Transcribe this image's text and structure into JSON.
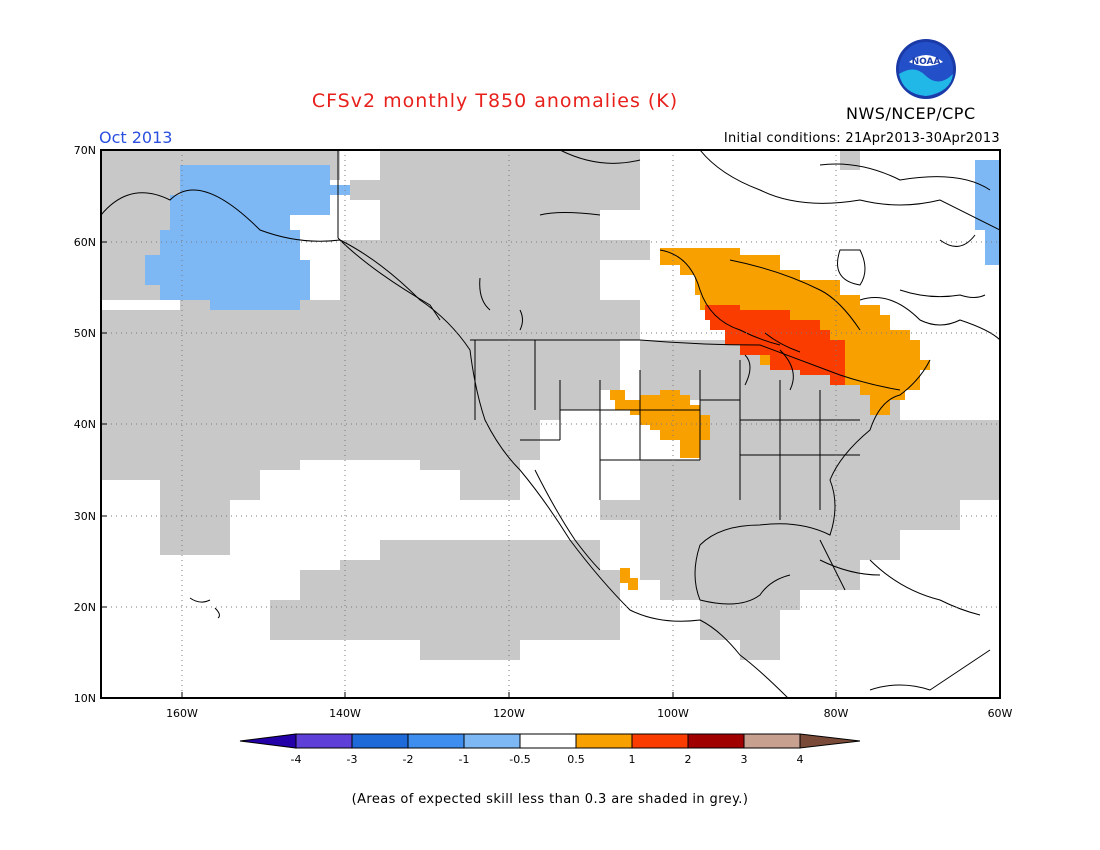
{
  "title": "CFSv2 monthly T850 anomalies (K)",
  "valid_month": "Oct 2013",
  "initial_conditions": "Initial conditions: 21Apr2013-30Apr2013",
  "agency": "NWS/NCEP/CPC",
  "logo_text": "NOAA",
  "footnote": "(Areas of expected skill less than 0.3 are shaded in grey.)",
  "map": {
    "lon_range": [
      -170,
      -60
    ],
    "lat_range": [
      10,
      70
    ],
    "lat_ticks": [
      "70N",
      "60N",
      "50N",
      "40N",
      "30N",
      "20N",
      "10N"
    ],
    "lon_ticks": [
      "160W",
      "140W",
      "120W",
      "100W",
      "80W",
      "60W"
    ]
  },
  "colorbar": {
    "labels": [
      "-4",
      "-3",
      "-2",
      "-1",
      "-0.5",
      "0.5",
      "1",
      "2",
      "3",
      "4"
    ],
    "colors": [
      "#2400a8",
      "#5e3fd8",
      "#1e6ad8",
      "#3e8ef0",
      "#7db8f5",
      "#ffffff",
      "#f8a000",
      "#fa3c00",
      "#a10000",
      "#c8a090",
      "#7a4a38"
    ]
  },
  "colors": {
    "skill_grey": "#c8c8c8",
    "anom_light_blue": "#7db8f5",
    "anom_orange": "#f8a000",
    "anom_red_orange": "#fa3c00",
    "title_red": "#e8201c",
    "date_blue": "#2b4fe0"
  }
}
